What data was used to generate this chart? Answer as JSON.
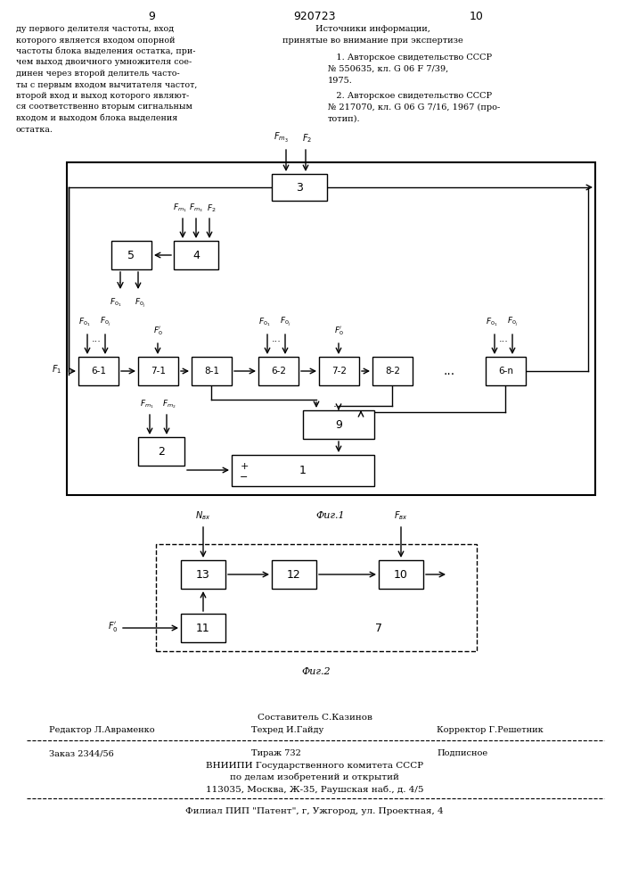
{
  "page_num_left": "9",
  "page_num_center": "920723",
  "page_num_right": "10",
  "left_text": [
    "ду первого делителя частоты, вход",
    "которого является входом опорной",
    "частоты блока выделения остатка, при-",
    "чем выход двоичного умножителя сое-",
    "динен через второй делитель часто-",
    "ты с первым входом вычитателя частот,",
    "второй вход и выход которого являют-",
    "ся соответственно вторым сигнальным",
    "входом и выходом блока выделения",
    "остатка."
  ],
  "right_text_title": "Источники информации,",
  "right_text_subtitle": "принятые во внимание при экспертизе",
  "right_ref1_line1": "   1. Авторское свидетельство СССР",
  "right_ref1_line2": "№ 550635, кл. G 06 F 7/39,",
  "right_ref1_line3": "1975.",
  "right_ref2_line1": "   2. Авторское свидетельство СССР",
  "right_ref2_line2": "№ 217070, кл. G 06 G 7/16, 1967 (про-",
  "right_ref2_line3": "тотип).",
  "fig1_caption": "Фиг.1",
  "fig2_caption": "Фиг.2",
  "footer_compiled": "Составитель С.Казинов",
  "footer_editor": "Редактор Л.Авраменко",
  "footer_tech": "Техред И.Гайду",
  "footer_corrector": "Корректор Г.Решетник",
  "footer_order": "Заказ 2344/56",
  "footer_print": "Тираж 732",
  "footer_signed": "Подписное",
  "footer_org": "ВНИИПИ Государственного комитета СССР",
  "footer_dept": "по делам изобретений и открытий",
  "footer_addr": "113035, Москва, Ж-35, Раушская наб., д. 4/5",
  "footer_branch": "Филиал ПИП \"Патент\", г, Ужгород, ул. Проектная, 4",
  "bg_color": "#ffffff"
}
